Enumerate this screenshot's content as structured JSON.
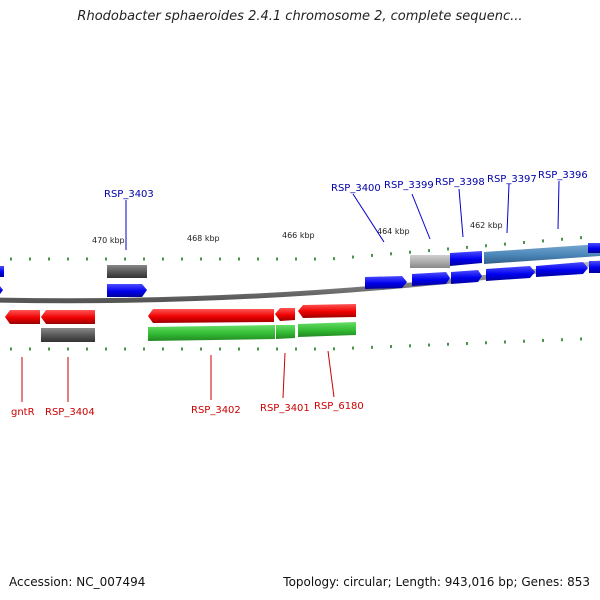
{
  "title": "Rhodobacter sphaeroides 2.4.1 chromosome 2, complete sequenc...",
  "footer": {
    "accession": "Accession: NC_007494",
    "topology": "Topology: circular; Length: 943,016 bp; Genes: 853"
  },
  "scale_labels": [
    "470 kbp",
    "468 kbp",
    "466 kbp",
    "464 kbp",
    "462 kbp"
  ],
  "top_gene_labels": [
    "RSP_3403",
    "RSP_3400",
    "RSP_3399",
    "RSP_3398",
    "RSP_3397",
    "RSP_3396"
  ],
  "bottom_gene_labels": [
    "gntR",
    "RSP_3404",
    "RSP_3402",
    "RSP_3401",
    "RSP_6180"
  ],
  "colors": {
    "forward_gene": "#0000ee",
    "reverse_gene": "#ee0000",
    "forward_label": "#0000aa",
    "reverse_label": "#cc0000",
    "cds_top_gray": "#555555",
    "cds_bottom_gray": "#666666",
    "cds_green": "#33bb33",
    "cds_steelblue": "#4a86b8",
    "cds_light_gray": "#aaaaaa",
    "tick_green": "#1a7a1a",
    "backbone": "#888888"
  }
}
